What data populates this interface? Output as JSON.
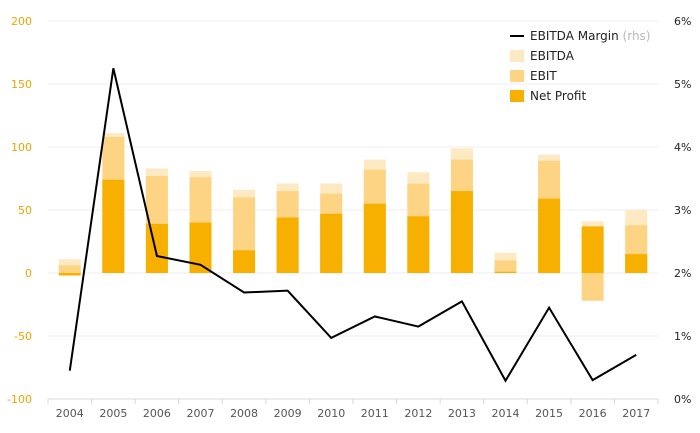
{
  "chart_data": {
    "type": "bar",
    "categories": [
      "2004",
      "2005",
      "2006",
      "2007",
      "2008",
      "2009",
      "2010",
      "2011",
      "2012",
      "2013",
      "2014",
      "2015",
      "2016",
      "2017"
    ],
    "series": [
      {
        "name": "EBITDA",
        "kind": "bar",
        "color": "#fde9c2",
        "values": [
          11,
          111,
          83,
          81,
          66,
          71,
          71,
          90,
          80,
          99,
          16,
          94,
          41,
          50
        ]
      },
      {
        "name": "EBIT",
        "kind": "bar",
        "color": "#fdd484",
        "values": [
          6,
          108,
          77,
          76,
          60,
          65,
          63,
          82,
          71,
          90,
          10,
          89,
          -22,
          38
        ]
      },
      {
        "name": "Net Profit",
        "kind": "bar",
        "color": "#f7b000",
        "values": [
          -2,
          74,
          39,
          40,
          18,
          44,
          47,
          55,
          45,
          65,
          1,
          59,
          37,
          15
        ]
      },
      {
        "name": "EBITDA Margin",
        "name_suffix": "(rhs)",
        "kind": "line",
        "axis": "right",
        "color": "#000000",
        "values": [
          0.45,
          5.25,
          2.27,
          2.13,
          1.69,
          1.72,
          0.97,
          1.31,
          1.15,
          1.55,
          0.29,
          1.45,
          0.3,
          0.7
        ]
      }
    ],
    "ylim": [
      -100,
      200
    ],
    "yticks": [
      -100,
      -50,
      0,
      50,
      100,
      150,
      200
    ],
    "y2lim": [
      0,
      6
    ],
    "y2ticks": [
      "0%",
      "1%",
      "2%",
      "3%",
      "4%",
      "5%",
      "6%"
    ],
    "y2tickvalues": [
      0,
      1,
      2,
      3,
      4,
      5,
      6
    ],
    "title": "",
    "xlabel": "",
    "ylabel": "",
    "y2label": "",
    "grid": "horizontal",
    "legend": "top-right"
  }
}
